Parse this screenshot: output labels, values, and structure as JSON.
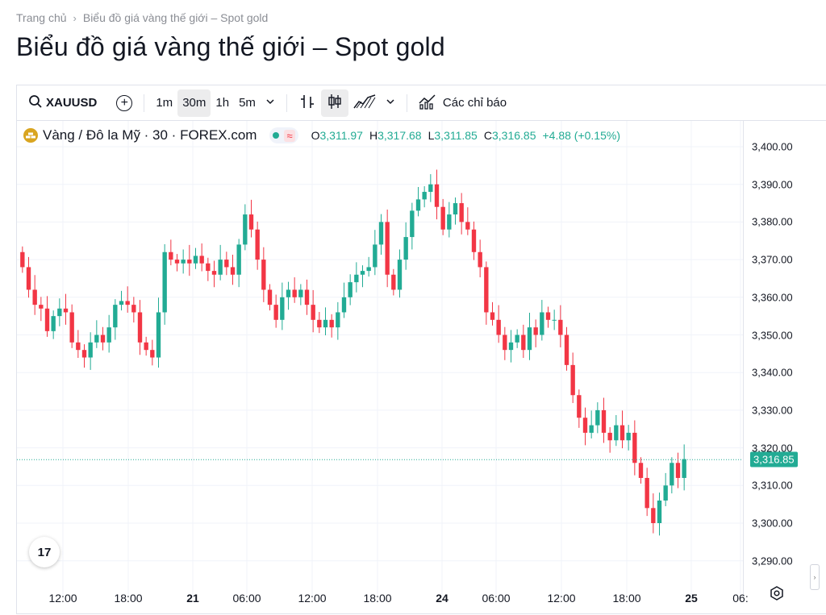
{
  "breadcrumb": {
    "home": "Trang chủ",
    "separator": "›",
    "current": "Biểu đồ giá vàng thế giới – Spot gold"
  },
  "page_title": "Biểu đồ giá vàng thế giới – Spot gold",
  "toolbar": {
    "symbol": "XAUUSD",
    "intervals": [
      "1m",
      "30m",
      "1h",
      "5m"
    ],
    "active_interval": "30m",
    "indicators_label": "Các chỉ báo"
  },
  "legend": {
    "instrument": "Vàng / Đô la Mỹ · 30 · FOREX.com",
    "o_label": "O",
    "o_value": "3,311.97",
    "h_label": "H",
    "h_value": "3,317.68",
    "l_label": "L",
    "l_value": "3,311.85",
    "c_label": "C",
    "c_value": "3,316.85",
    "change": "+4.88 (+0.15%)"
  },
  "colors": {
    "up": "#22ab94",
    "down": "#f23645",
    "grid": "#f0f3fa",
    "accent": "#22ab94"
  },
  "chart_data": {
    "type": "candlestick",
    "y_ticks": [
      "3,400.00",
      "3,390.00",
      "3,380.00",
      "3,370.00",
      "3,360.00",
      "3,350.00",
      "3,340.00",
      "3,330.00",
      "3,320.00",
      "3,310.00",
      "3,300.00",
      "3,290.00"
    ],
    "ylim": [
      3285,
      3405
    ],
    "last_price": 3316.85,
    "last_price_label": "3,316.85",
    "x_ticks": [
      {
        "label": "12:00",
        "bold": false
      },
      {
        "label": "18:00",
        "bold": false
      },
      {
        "label": "21",
        "bold": true
      },
      {
        "label": "06:00",
        "bold": false
      },
      {
        "label": "12:00",
        "bold": false
      },
      {
        "label": "18:00",
        "bold": false
      },
      {
        "label": "24",
        "bold": true
      },
      {
        "label": "06:00",
        "bold": false
      },
      {
        "label": "12:00",
        "bold": false
      },
      {
        "label": "18:00",
        "bold": false
      },
      {
        "label": "25",
        "bold": true
      },
      {
        "label": "06:",
        "bold": false
      }
    ],
    "closes": [
      3368,
      3362,
      3358,
      3357,
      3351,
      3355,
      3357,
      3356,
      3348,
      3346,
      3344,
      3348,
      3350,
      3348,
      3352,
      3358,
      3359,
      3358,
      3356,
      3348,
      3346,
      3344,
      3356,
      3372,
      3370,
      3369,
      3370,
      3369,
      3371,
      3369,
      3367,
      3366,
      3370,
      3368,
      3366,
      3374,
      3382,
      3378,
      3370,
      3362,
      3358,
      3354,
      3360,
      3362,
      3360,
      3362,
      3358,
      3354,
      3352,
      3354,
      3352,
      3356,
      3360,
      3364,
      3366,
      3367,
      3368,
      3374,
      3380,
      3366,
      3362,
      3370,
      3376,
      3383,
      3386,
      3388,
      3390,
      3384,
      3378,
      3382,
      3385,
      3380,
      3378,
      3372,
      3368,
      3356,
      3354,
      3350,
      3346,
      3348,
      3350,
      3346,
      3352,
      3350,
      3356,
      3354,
      3354,
      3350,
      3342,
      3334,
      3328,
      3324,
      3326,
      3330,
      3324,
      3322,
      3326,
      3322,
      3324,
      3316,
      3312,
      3304,
      3300,
      3306,
      3310,
      3316,
      3312,
      3317
    ]
  },
  "tv_logo": "17",
  "icons": [
    "search-icon",
    "plus-circle-icon",
    "chevron-down-icon",
    "bar-style-icon",
    "candle-icon",
    "area-chart-icon",
    "indicators-icon",
    "gold-coin-icon",
    "settings-icon"
  ]
}
